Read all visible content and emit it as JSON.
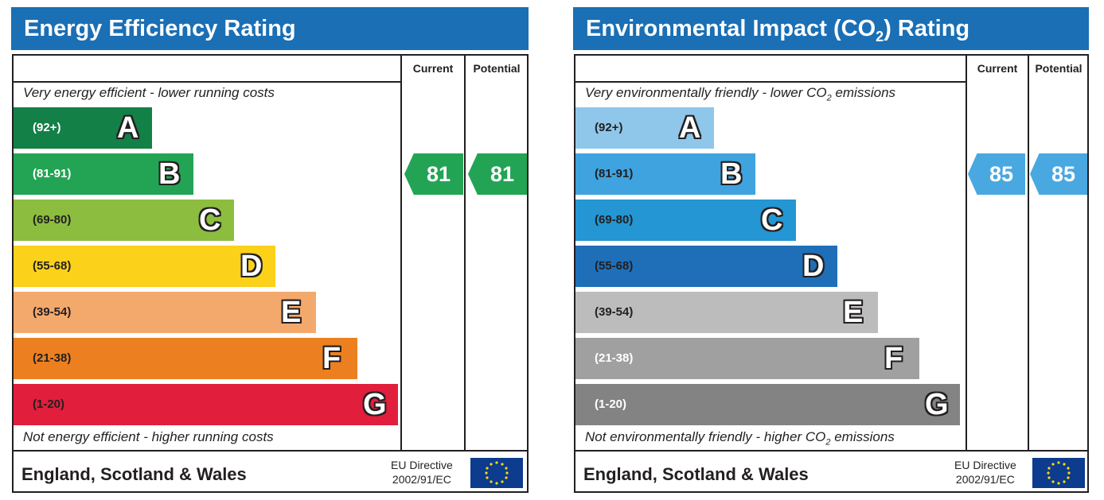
{
  "chart_data": [
    {
      "type": "bar",
      "title": "Energy Efficiency Rating",
      "columns": [
        "Current",
        "Potential"
      ],
      "top_caption": "Very energy efficient - lower running costs",
      "bottom_caption": "Not energy efficient - higher running costs",
      "categories": [
        "A",
        "B",
        "C",
        "D",
        "E",
        "F",
        "G"
      ],
      "ranges": [
        "(92+)",
        "(81-91)",
        "(69-80)",
        "(55-68)",
        "(39-54)",
        "(21-38)",
        "(1-20)"
      ],
      "colors": [
        "#138047",
        "#23a455",
        "#8cbd3f",
        "#fbd11a",
        "#f3a96c",
        "#ec8020",
        "#e11e3c"
      ],
      "range_text_colors": [
        "#ffffff",
        "#ffffff",
        "#231f20",
        "#231f20",
        "#231f20",
        "#231f20",
        "#231f20"
      ],
      "current": 81,
      "potential": 81,
      "rating_band": "B",
      "rating_color": "#23a455",
      "footer_region": "England, Scotland & Wales",
      "eu_directive_line1": "EU Directive",
      "eu_directive_line2": "2002/91/EC"
    },
    {
      "type": "bar",
      "title": "Environmental Impact (CO",
      "title_sub": "2",
      "title_end": ") Rating",
      "columns": [
        "Current",
        "Potential"
      ],
      "top_caption": "Very environmentally friendly - lower CO",
      "top_caption_sub": "2",
      "top_caption_end": " emissions",
      "bottom_caption": "Not environmentally friendly - higher CO",
      "bottom_caption_sub": "2",
      "bottom_caption_end": " emissions",
      "categories": [
        "A",
        "B",
        "C",
        "D",
        "E",
        "F",
        "G"
      ],
      "ranges": [
        "(92+)",
        "(81-91)",
        "(69-80)",
        "(55-68)",
        "(39-54)",
        "(21-38)",
        "(1-20)"
      ],
      "colors": [
        "#8ec7ea",
        "#3ea3de",
        "#2396d3",
        "#1e6fb8",
        "#bcbcbc",
        "#a0a0a0",
        "#838383"
      ],
      "range_text_colors": [
        "#231f20",
        "#231f20",
        "#231f20",
        "#231f20",
        "#231f20",
        "#ffffff",
        "#ffffff"
      ],
      "current": 85,
      "potential": 85,
      "rating_band": "B",
      "rating_color": "#4aa8e0",
      "footer_region": "England, Scotland & Wales",
      "eu_directive_line1": "EU Directive",
      "eu_directive_line2": "2002/91/EC"
    }
  ]
}
